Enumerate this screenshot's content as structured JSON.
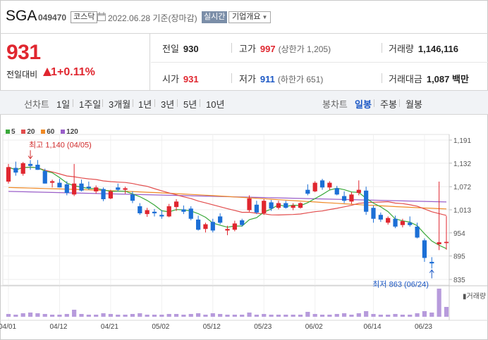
{
  "header": {
    "name": "SGA",
    "code": "049470",
    "market": "코스닥",
    "date": "2022.06.28",
    "session": "기준(장마감)",
    "realtime_label": "실시간",
    "company_dropdown": "기업개요"
  },
  "price": {
    "current": "931",
    "change_label": "전일대비",
    "change_value": "1",
    "change_pct": "+0.11%",
    "color_up": "#e0262f",
    "color_down": "#1c58c5"
  },
  "stats": {
    "prev_close": {
      "label": "전일",
      "value": "930"
    },
    "high": {
      "label": "고가",
      "value": "997",
      "sub": "(상한가 1,205)"
    },
    "volume": {
      "label": "거래량",
      "value": "1,146,116"
    },
    "open": {
      "label": "시가",
      "value": "931"
    },
    "low": {
      "label": "저가",
      "value": "911",
      "sub": "(하한가 651)"
    },
    "amount": {
      "label": "거래대금",
      "value": "1,087 백만"
    }
  },
  "periods": {
    "line_label": "선차트",
    "line_items": [
      "1일",
      "1주일",
      "3개월",
      "1년",
      "3년",
      "5년",
      "10년"
    ],
    "candle_label": "봉차트",
    "candle_items": [
      "일봉",
      "주봉",
      "월봉"
    ],
    "candle_selected": 0
  },
  "chart_data": {
    "type": "candlestick",
    "legend": [
      {
        "name": "5",
        "color": "#3aa83a"
      },
      {
        "name": "20",
        "color": "#e24d4d"
      },
      {
        "name": "60",
        "color": "#f08a26"
      },
      {
        "name": "120",
        "color": "#9a5fc9"
      }
    ],
    "y_ticks": [
      "1,191",
      "1,132",
      "1,072",
      "1,013",
      "954",
      "895",
      "835"
    ],
    "ylim": [
      835,
      1191
    ],
    "x_ticks": [
      "04/01",
      "04/12",
      "04/21",
      "05/02",
      "05/12",
      "05/23",
      "06/02",
      "06/14",
      "06/23"
    ],
    "x_tick_index": [
      0,
      7,
      14,
      21,
      28,
      35,
      42,
      50,
      57
    ],
    "annotations": {
      "high": "최고 1,140 (04/05)",
      "high_index": 3,
      "high_value": 1140,
      "low": "최저 863 (06/24)",
      "low_index": 58,
      "low_value": 863
    },
    "volume_label": "거래량",
    "candles": [
      [
        1085,
        1130,
        1080,
        1122
      ],
      [
        1120,
        1136,
        1100,
        1108
      ],
      [
        1105,
        1135,
        1100,
        1132
      ],
      [
        1130,
        1140,
        1115,
        1125
      ],
      [
        1128,
        1140,
        1115,
        1115
      ],
      [
        1112,
        1118,
        1080,
        1080
      ],
      [
        1082,
        1090,
        1070,
        1086
      ],
      [
        1082,
        1092,
        1070,
        1070
      ],
      [
        1078,
        1086,
        1050,
        1056
      ],
      [
        1052,
        1130,
        1048,
        1080
      ],
      [
        1080,
        1090,
        1060,
        1062
      ],
      [
        1072,
        1085,
        1064,
        1068
      ],
      [
        1060,
        1075,
        1054,
        1070
      ],
      [
        1066,
        1070,
        1035,
        1040
      ],
      [
        1042,
        1064,
        1040,
        1060
      ],
      [
        1070,
        1080,
        1060,
        1064
      ],
      [
        1064,
        1072,
        1054,
        1068
      ],
      [
        1052,
        1060,
        1030,
        1036
      ],
      [
        1022,
        1030,
        1000,
        1004
      ],
      [
        1002,
        1018,
        995,
        1012
      ],
      [
        1008,
        1015,
        996,
        1004
      ],
      [
        1000,
        1012,
        990,
        996
      ],
      [
        996,
        1028,
        994,
        1022
      ],
      [
        1020,
        1040,
        1010,
        1034
      ],
      [
        1014,
        1024,
        1002,
        1008
      ],
      [
        1016,
        1022,
        986,
        990
      ],
      [
        988,
        998,
        960,
        962
      ],
      [
        964,
        980,
        955,
        976
      ],
      [
        982,
        990,
        955,
        960
      ],
      [
        996,
        1004,
        976,
        980
      ],
      [
        960,
        972,
        948,
        964
      ],
      [
        962,
        985,
        958,
        978
      ],
      [
        986,
        990,
        970,
        974
      ],
      [
        1012,
        1050,
        1008,
        1042
      ],
      [
        1026,
        1036,
        1002,
        1006
      ],
      [
        1004,
        1040,
        1000,
        1036
      ],
      [
        1032,
        1038,
        1010,
        1016
      ],
      [
        1018,
        1036,
        1014,
        1030
      ],
      [
        1030,
        1036,
        1016,
        1018
      ],
      [
        1018,
        1030,
        1012,
        1024
      ],
      [
        1018,
        1032,
        1016,
        1030
      ],
      [
        1064,
        1078,
        1050,
        1054
      ],
      [
        1060,
        1086,
        1058,
        1082
      ],
      [
        1088,
        1092,
        1064,
        1070
      ],
      [
        1070,
        1086,
        1064,
        1082
      ],
      [
        1068,
        1074,
        1050,
        1052
      ],
      [
        1048,
        1060,
        1030,
        1036
      ],
      [
        1034,
        1058,
        1028,
        1052
      ],
      [
        1056,
        1088,
        1050,
        1064
      ],
      [
        1062,
        1072,
        1000,
        1008
      ],
      [
        1018,
        1024,
        980,
        990
      ],
      [
        1000,
        1006,
        982,
        988
      ],
      [
        980,
        996,
        975,
        992
      ],
      [
        990,
        998,
        966,
        970
      ],
      [
        974,
        990,
        968,
        984
      ],
      [
        980,
        996,
        970,
        974
      ],
      [
        970,
        980,
        940,
        942
      ],
      [
        935,
        940,
        880,
        890
      ],
      [
        880,
        892,
        863,
        876
      ],
      [
        925,
        1085,
        910,
        930
      ],
      [
        928,
        997,
        911,
        931
      ]
    ],
    "volumes": [
      4,
      3,
      5,
      6,
      5,
      4,
      3,
      3,
      4,
      10,
      4,
      3,
      3,
      5,
      4,
      3,
      3,
      4,
      5,
      3,
      3,
      3,
      4,
      4,
      3,
      4,
      5,
      3,
      5,
      4,
      3,
      3,
      3,
      6,
      3,
      4,
      3,
      3,
      3,
      3,
      3,
      7,
      4,
      3,
      3,
      4,
      5,
      3,
      5,
      8,
      4,
      3,
      3,
      4,
      3,
      3,
      5,
      8,
      6,
      40,
      14
    ]
  }
}
